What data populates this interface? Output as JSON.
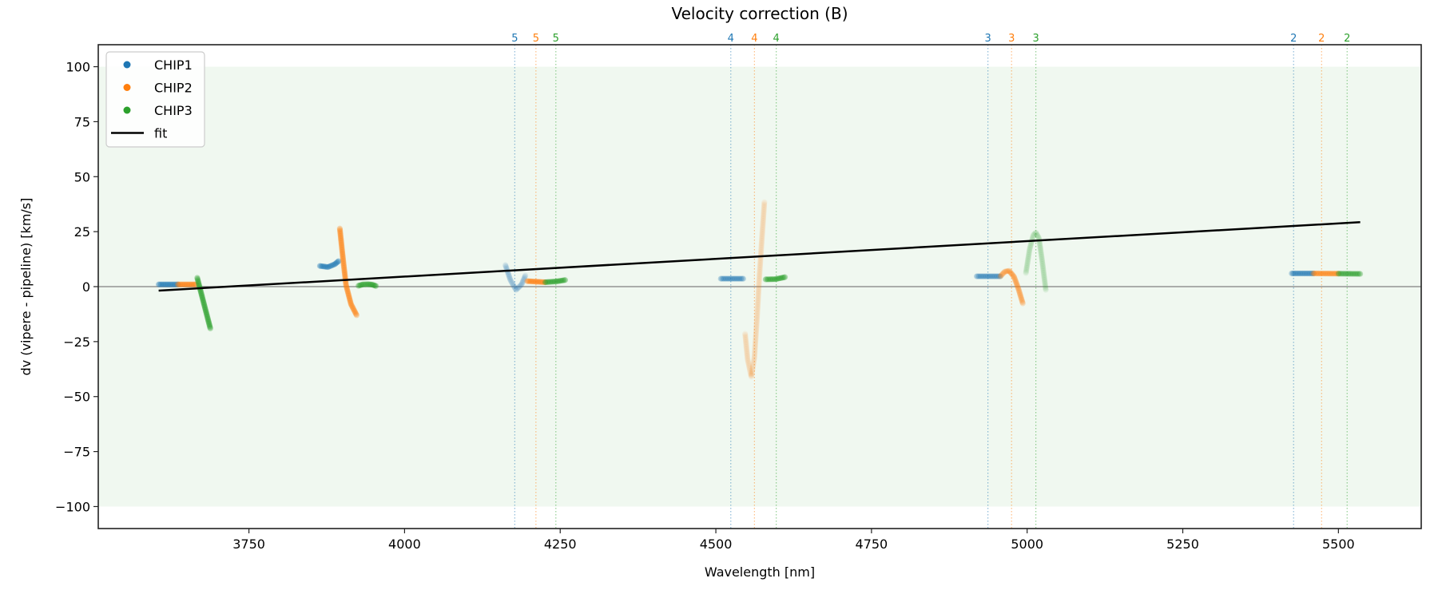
{
  "chart_data": {
    "type": "scatter",
    "title": "Velocity correction (B)",
    "xlabel": "Wavelength [nm]",
    "ylabel": "dv (vipere - pipeline) [km/s]",
    "xlim": [
      3508,
      5633
    ],
    "ylim": [
      -110,
      110
    ],
    "xticks": [
      3750,
      4000,
      4250,
      4500,
      4750,
      5000,
      5250,
      5500
    ],
    "yticks": [
      -100,
      -75,
      -50,
      -25,
      0,
      25,
      50,
      75,
      100
    ],
    "shaded_band": [
      -100,
      100
    ],
    "legend_position": "top-left",
    "colors": {
      "CHIP1": "#1f77b4",
      "CHIP2": "#ff7f0e",
      "CHIP3": "#2ca02c",
      "fit": "#000000",
      "band": "#2ca02c"
    },
    "legend": [
      {
        "label": "CHIP1",
        "kind": "marker",
        "color": "#1f77b4"
      },
      {
        "label": "CHIP2",
        "kind": "marker",
        "color": "#ff7f0e"
      },
      {
        "label": "CHIP3",
        "kind": "marker",
        "color": "#2ca02c"
      },
      {
        "label": "fit",
        "kind": "line",
        "color": "#000000"
      }
    ],
    "order_markers": [
      {
        "order": "5",
        "chip": "CHIP1",
        "x": 4177
      },
      {
        "order": "5",
        "chip": "CHIP2",
        "x": 4211
      },
      {
        "order": "5",
        "chip": "CHIP3",
        "x": 4243
      },
      {
        "order": "4",
        "chip": "CHIP1",
        "x": 4524
      },
      {
        "order": "4",
        "chip": "CHIP2",
        "x": 4562
      },
      {
        "order": "4",
        "chip": "CHIP3",
        "x": 4597
      },
      {
        "order": "3",
        "chip": "CHIP1",
        "x": 4937
      },
      {
        "order": "3",
        "chip": "CHIP2",
        "x": 4975
      },
      {
        "order": "3",
        "chip": "CHIP3",
        "x": 5014
      },
      {
        "order": "2",
        "chip": "CHIP1",
        "x": 5428
      },
      {
        "order": "2",
        "chip": "CHIP2",
        "x": 5473
      },
      {
        "order": "2",
        "chip": "CHIP3",
        "x": 5514
      }
    ],
    "fit": {
      "x": [
        3605,
        5535
      ],
      "y": [
        -1.8,
        29.3
      ]
    },
    "series": [
      {
        "name": "CHIP1",
        "order": "6",
        "alpha": 1.0,
        "points": [
          [
            3605,
            1
          ],
          [
            3636,
            1
          ]
        ]
      },
      {
        "name": "CHIP2",
        "order": "6",
        "alpha": 1.0,
        "points": [
          [
            3636,
            1
          ],
          [
            3665,
            1
          ]
        ]
      },
      {
        "name": "CHIP3",
        "order": "6",
        "alpha": 1.0,
        "points": [
          [
            3667,
            4
          ],
          [
            3677,
            -7
          ],
          [
            3688,
            -19
          ]
        ]
      },
      {
        "name": "CHIP1",
        "order": "5",
        "alpha": 1.0,
        "points": [
          [
            3864,
            9.4
          ],
          [
            3877,
            8.9
          ],
          [
            3888,
            10.2
          ],
          [
            3894,
            11.6
          ]
        ]
      },
      {
        "name": "CHIP2",
        "order": "5",
        "alpha": 0.85,
        "points": [
          [
            3896,
            26.4
          ],
          [
            3901,
            13
          ],
          [
            3906,
            0.7
          ],
          [
            3914,
            -8
          ],
          [
            3923,
            -13
          ]
        ]
      },
      {
        "name": "CHIP3",
        "order": "5",
        "alpha": 1.0,
        "points": [
          [
            3926,
            0.4
          ],
          [
            3933,
            1
          ],
          [
            3941,
            1.1
          ],
          [
            3948,
            0.9
          ],
          [
            3954,
            0.3
          ]
        ]
      },
      {
        "name": "CHIP1",
        "order": "4",
        "alpha": 0.35,
        "points": [
          [
            4162,
            9.8
          ],
          [
            4170,
            3
          ],
          [
            4179,
            -1.5
          ],
          [
            4188,
            1
          ],
          [
            4194,
            5
          ]
        ]
      },
      {
        "name": "CHIP2",
        "order": "4",
        "alpha": 1.0,
        "points": [
          [
            4197,
            2.5
          ],
          [
            4226,
            2
          ]
        ]
      },
      {
        "name": "CHIP3",
        "order": "4",
        "alpha": 1.0,
        "points": [
          [
            4226,
            2
          ],
          [
            4245,
            2.4
          ],
          [
            4258,
            3
          ]
        ]
      },
      {
        "name": "CHIP1",
        "order": "3",
        "alpha": 0.8,
        "points": [
          [
            4508,
            3.6
          ],
          [
            4544,
            3.6
          ]
        ]
      },
      {
        "name": "CHIP2",
        "order": "3",
        "alpha": 0.2,
        "points": [
          [
            4547,
            -21.4
          ],
          [
            4551,
            -33
          ],
          [
            4557,
            -41
          ],
          [
            4562,
            -32
          ],
          [
            4566,
            -15
          ],
          [
            4570,
            5
          ],
          [
            4574,
            22
          ],
          [
            4578,
            38.4
          ]
        ]
      },
      {
        "name": "CHIP3",
        "order": "3",
        "alpha": 1.0,
        "points": [
          [
            4580,
            3.3
          ],
          [
            4596,
            3.4
          ],
          [
            4611,
            4.3
          ]
        ]
      },
      {
        "name": "CHIP1",
        "order": "2",
        "alpha": 0.8,
        "points": [
          [
            4919,
            4.7
          ],
          [
            4957,
            4.7
          ]
        ]
      },
      {
        "name": "CHIP2",
        "order": "2",
        "alpha": 0.6,
        "points": [
          [
            4957,
            4.7
          ],
          [
            4964,
            6.8
          ],
          [
            4971,
            7.2
          ],
          [
            4979,
            4.5
          ],
          [
            4986,
            -1
          ],
          [
            4993,
            -7.6
          ]
        ]
      },
      {
        "name": "CHIP3",
        "order": "2",
        "alpha": 0.25,
        "points": [
          [
            4998,
            6.2
          ],
          [
            5004,
            17
          ],
          [
            5010,
            23.5
          ],
          [
            5014,
            24.6
          ],
          [
            5019,
            22
          ],
          [
            5024,
            12
          ],
          [
            5030,
            -1.5
          ]
        ]
      },
      {
        "name": "CHIP1",
        "order": "1",
        "alpha": 0.9,
        "points": [
          [
            5425,
            6
          ],
          [
            5460,
            6
          ]
        ]
      },
      {
        "name": "CHIP2",
        "order": "1",
        "alpha": 0.9,
        "points": [
          [
            5460,
            6
          ],
          [
            5500,
            5.9
          ]
        ]
      },
      {
        "name": "CHIP3",
        "order": "1",
        "alpha": 0.9,
        "points": [
          [
            5500,
            5.9
          ],
          [
            5535,
            5.8
          ]
        ]
      }
    ]
  }
}
